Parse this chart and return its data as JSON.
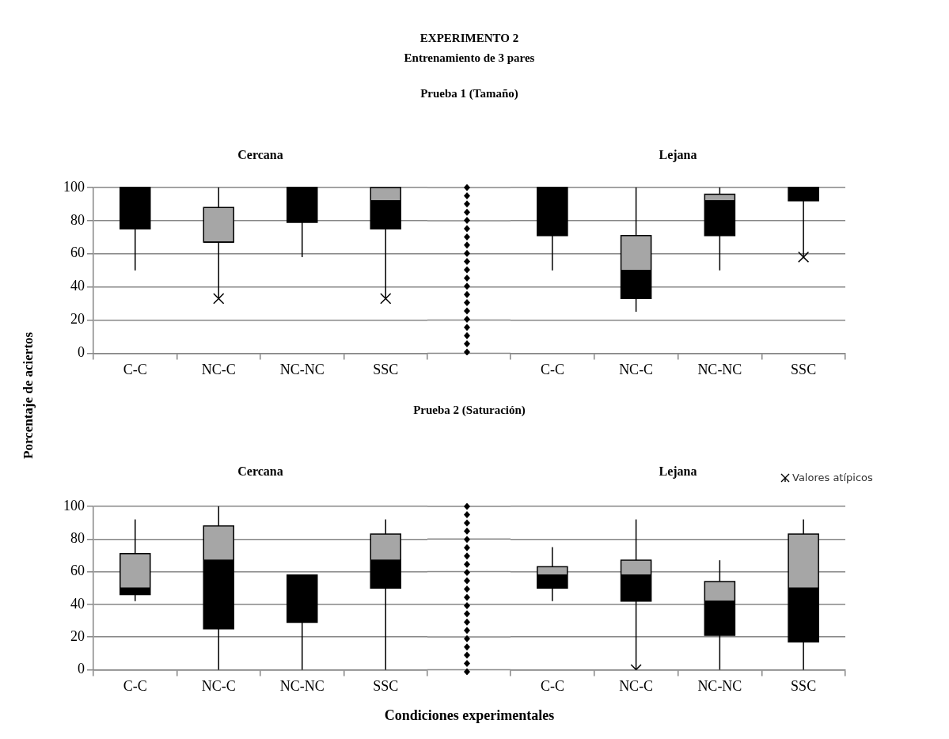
{
  "chart_data": [
    {
      "type": "box",
      "title": "Prueba 1 (Tamaño)",
      "subtitle": "Cercana",
      "annotations": [
        "EXPERIMENTO 2",
        "Entrenamiento de 3 pares"
      ],
      "categories": [
        "C-C",
        "NC-C",
        "NC-NC",
        "SSC"
      ],
      "series": [
        {
          "type": "box",
          "color": "#a6a6a6",
          "colors": [
            "#000000",
            "#a6a6a6",
            "#000000",
            "#000000"
          ],
          "boxes": [
            {
              "low": 50,
              "q1": 75,
              "median": 100,
              "q3": 100,
              "high": 100
            },
            {
              "low": 33,
              "q1": 67,
              "median": 67,
              "q3": 88,
              "high": 100
            },
            {
              "low": 58,
              "q1": 79,
              "median": 100,
              "q3": 100,
              "high": 100
            },
            {
              "low": 33,
              "q1": 75,
              "median": 92,
              "q3": 100,
              "high": 100
            }
          ]
        },
        {
          "type": "scatter",
          "color": "#000000",
          "x": [
            "NC-C",
            "SSC"
          ],
          "values": [
            33,
            33
          ]
        }
      ],
      "ylim": [
        0,
        100
      ],
      "yticks": [
        0,
        20,
        40,
        60,
        80,
        100
      ],
      "grid": "y",
      "marker": "cross"
    },
    {
      "type": "box",
      "subtitle": "Lejana",
      "categories": [
        "C-C",
        "NC-C",
        "NC-NC",
        "SSC"
      ],
      "series": [
        {
          "type": "box",
          "color": "#a6a6a6",
          "colors": [
            "#000000",
            "#000000",
            "#000000",
            "#000000"
          ],
          "boxes": [
            {
              "low": 50,
              "q1": 71,
              "median": 100,
              "q3": 100,
              "high": 100
            },
            {
              "low": 25,
              "q1": 33,
              "median": 50,
              "q3": 71,
              "high": 100
            },
            {
              "low": 50,
              "q1": 71,
              "median": 92,
              "q3": 96,
              "high": 100
            },
            {
              "low": 58,
              "q1": 92,
              "median": 100,
              "q3": 100,
              "high": 100
            }
          ]
        },
        {
          "type": "scatter",
          "color": "#000000",
          "x": [
            "SSC"
          ],
          "values": [
            58
          ]
        }
      ],
      "ylim": [
        0,
        100
      ],
      "yticks": [
        0,
        20,
        40,
        60,
        80,
        100
      ],
      "grid": "y",
      "marker": "cross",
      "tick_labels": "x"
    },
    {
      "type": "box",
      "title": "Prueba 2 (Saturación)",
      "subtitle": "Cercana",
      "ylabel": "Porcentaje de aciertos",
      "xlabel": "Condiciones experimentales",
      "categories": [
        "C-C",
        "NC-C",
        "NC-NC",
        "SSC"
      ],
      "series": [
        {
          "type": "box",
          "color": "#a6a6a6",
          "colors": [
            "#000000",
            "#000000",
            "#000000",
            "#000000"
          ],
          "boxes": [
            {
              "low": 42,
              "q1": 46,
              "median": 50,
              "q3": 71,
              "high": 92
            },
            {
              "low": 0,
              "q1": 25,
              "median": 67,
              "q3": 88,
              "high": 100
            },
            {
              "low": 0,
              "q1": 29,
              "median": 58,
              "q3": 58,
              "high": 58
            },
            {
              "low": 0,
              "q1": 50,
              "median": 67,
              "q3": 83,
              "high": 92
            }
          ]
        }
      ],
      "ylim": [
        0,
        100
      ],
      "yticks": [
        0,
        20,
        40,
        60,
        80,
        100
      ],
      "grid": "y"
    },
    {
      "type": "box",
      "subtitle": "Lejana",
      "categories": [
        "C-C",
        "NC-C",
        "NC-NC",
        "SSC"
      ],
      "series": [
        {
          "type": "box",
          "color": "#a6a6a6",
          "colors": [
            "#000000",
            "#000000",
            "#000000",
            "#000000"
          ],
          "boxes": [
            {
              "low": 42,
              "q1": 50,
              "median": 58,
              "q3": 63,
              "high": 75
            },
            {
              "low": 0,
              "q1": 42,
              "median": 58,
              "q3": 67,
              "high": 92
            },
            {
              "low": 0,
              "q1": 21,
              "median": 42,
              "q3": 54,
              "high": 67
            },
            {
              "low": 0,
              "q1": 17,
              "median": 50,
              "q3": 83,
              "high": 92
            }
          ]
        },
        {
          "type": "scatter",
          "name": "Valores atípicos",
          "color": "#000000",
          "x": [
            "NC-C"
          ],
          "values": [
            0
          ]
        }
      ],
      "ylim": [
        0,
        100
      ],
      "yticks": [
        0,
        20,
        40,
        60,
        80,
        100
      ],
      "grid": "y",
      "marker": "cross",
      "legend": "top right",
      "tick_labels": "x"
    }
  ]
}
